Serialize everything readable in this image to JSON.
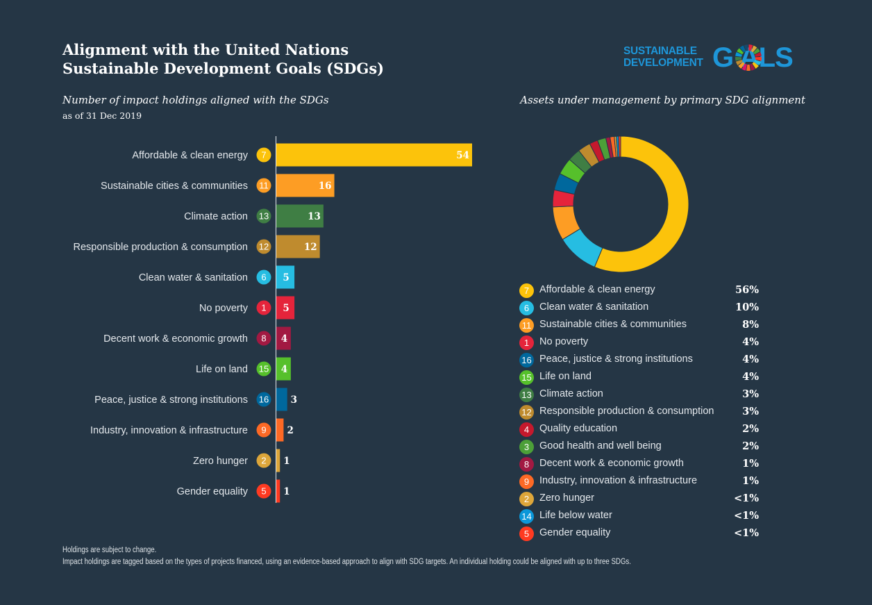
{
  "title": {
    "line1": "Alignment with the United Nations",
    "line2": "Sustainable Development Goals (SDGs)"
  },
  "logo": {
    "line1": "SUSTAINABLE",
    "line2": "DEVELOPMENT",
    "big": "G  ALS",
    "wheel_colors": [
      "#e5243b",
      "#dda63a",
      "#4c9f38",
      "#c5192d",
      "#ff3a21",
      "#26bde2",
      "#fcc30b",
      "#a21942",
      "#fd6925",
      "#dd1367",
      "#fd9d24",
      "#bf8b2e",
      "#3f7e44",
      "#0a97d9",
      "#56c02b",
      "#00689d",
      "#19486a"
    ]
  },
  "bar_chart": {
    "subtitle": "Number of impact holdings aligned with the SDGs",
    "date": "as of 31 Dec 2019"
  },
  "donut_chart": {
    "subtitle": "Assets under management by primary SDG alignment"
  },
  "chart_data": [
    {
      "type": "bar",
      "orientation": "horizontal",
      "title": "Number of impact holdings aligned with the SDGs",
      "categories": [
        "Affordable & clean energy",
        "Sustainable cities & communities",
        "Climate action",
        "Responsible production & consumption",
        "Clean water & sanitation",
        "No poverty",
        "Decent work & economic growth",
        "Life on land",
        "Peace, justice & strong institutions",
        "Industry, innovation & infrastructure",
        "Zero hunger",
        "Gender equality"
      ],
      "sdg_numbers": [
        "7",
        "11",
        "13",
        "12",
        "6",
        "1",
        "8",
        "15",
        "16",
        "9",
        "2",
        "5"
      ],
      "values": [
        54,
        16,
        13,
        12,
        5,
        5,
        4,
        4,
        3,
        2,
        1,
        1
      ],
      "colors": [
        "#fcc30b",
        "#fd9d24",
        "#3f7e44",
        "#bf8b2e",
        "#26bde2",
        "#e5243b",
        "#a21942",
        "#56c02b",
        "#00689d",
        "#fd6925",
        "#dda63a",
        "#ff3a21"
      ],
      "xlim": [
        0,
        54
      ]
    },
    {
      "type": "pie",
      "style": "donut",
      "title": "Assets under management by primary SDG alignment",
      "categories": [
        "Affordable & clean energy",
        "Clean water & sanitation",
        "Sustainable cities & communities",
        "No poverty",
        "Peace, justice & strong institutions",
        "Life on land",
        "Climate action",
        "Responsible production & consumption",
        "Quality education",
        "Good health and well being",
        "Decent work & economic growth",
        "Industry, innovation & infrastructure",
        "Zero hunger",
        "Life below water",
        "Gender equality"
      ],
      "sdg_numbers": [
        "7",
        "6",
        "11",
        "1",
        "16",
        "15",
        "13",
        "12",
        "4",
        "3",
        "8",
        "9",
        "2",
        "14",
        "5"
      ],
      "labels": [
        "56%",
        "10%",
        "8%",
        "4%",
        "4%",
        "4%",
        "3%",
        "3%",
        "2%",
        "2%",
        "1%",
        "1%",
        "<1%",
        "<1%",
        "<1%"
      ],
      "values": [
        56,
        10,
        8,
        4,
        4,
        4,
        3,
        3,
        2,
        2,
        1,
        1,
        0.5,
        0.5,
        0.5
      ],
      "colors": [
        "#fcc30b",
        "#26bde2",
        "#fd9d24",
        "#e5243b",
        "#00689d",
        "#56c02b",
        "#3f7e44",
        "#bf8b2e",
        "#c5192d",
        "#4c9f38",
        "#a21942",
        "#fd6925",
        "#dda63a",
        "#0a97d9",
        "#ff3a21"
      ]
    }
  ],
  "footer": {
    "line1": "Holdings are subject to change.",
    "line2": "Impact holdings are tagged based on the types of projects financed, using an evidence-based approach to align with SDG targets. An individual holding could be aligned with up to three SDGs."
  }
}
